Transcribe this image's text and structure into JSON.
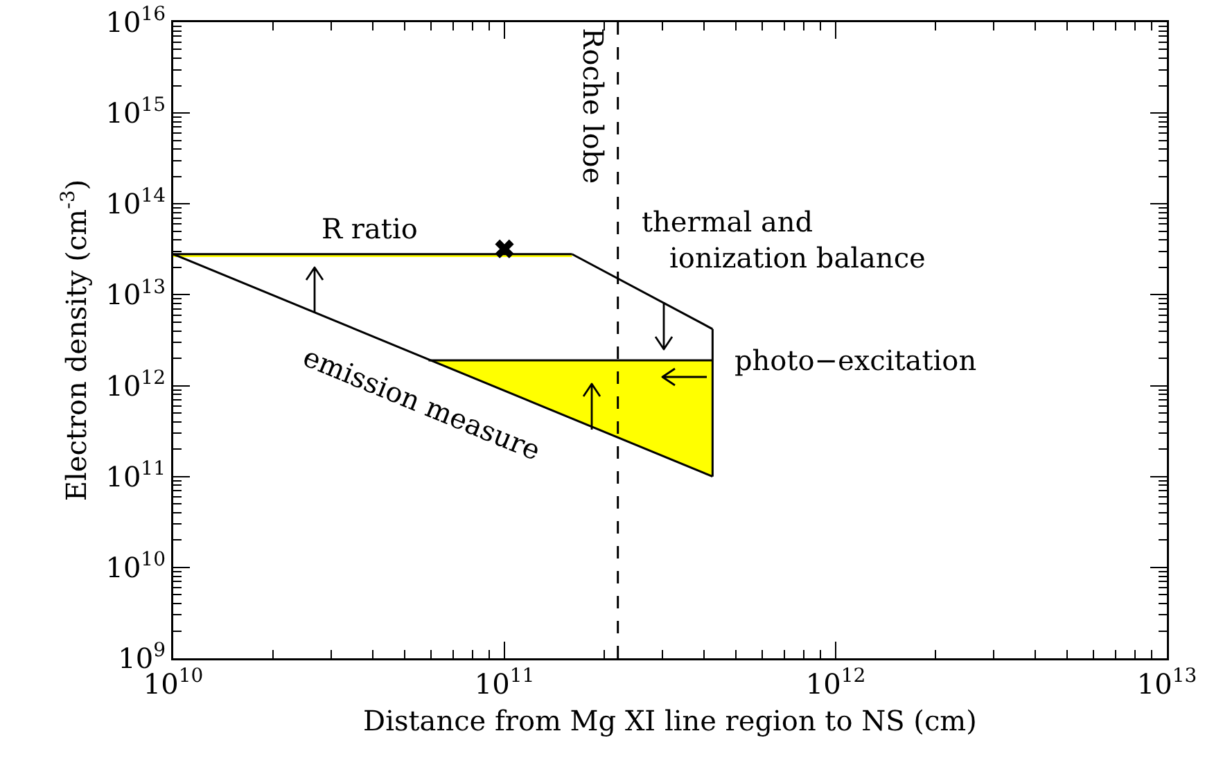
{
  "chart_data": {
    "type": "line",
    "xlabel": "Distance from Mg XI line region to NS (cm)",
    "ylabel": "Electron density (cm$^{-3}$)",
    "log": "xy",
    "xlim": [
      10000000000.0,
      10000000000000.0
    ],
    "ylim": [
      1000000000.0,
      1e+16
    ],
    "xticks": [
      {
        "value": 10000000000.0,
        "label": "10$^{10}$"
      },
      {
        "value": 100000000000.0,
        "label": "10$^{11}$"
      },
      {
        "value": 1000000000000.0,
        "label": "10$^{12}$"
      },
      {
        "value": 10000000000000.0,
        "label": "10$^{13}$"
      }
    ],
    "yticks": [
      {
        "value": 1000000000.0,
        "label": "10$^{9}$"
      },
      {
        "value": 10000000000.0,
        "label": "10$^{10}$"
      },
      {
        "value": 100000000000.0,
        "label": "10$^{11}$"
      },
      {
        "value": 1000000000000.0,
        "label": "10$^{12}$"
      },
      {
        "value": 10000000000000.0,
        "label": "10$^{13}$"
      },
      {
        "value": 100000000000000.0,
        "label": "10$^{14}$"
      },
      {
        "value": 1000000000000000.0,
        "label": "10$^{15}$"
      },
      {
        "value": 1e+16,
        "label": "10$^{16}$"
      }
    ],
    "grid": false,
    "series": [
      {
        "name": "R ratio",
        "color": "#000000",
        "x": [
          10000000000.0,
          160000000000.0
        ],
        "values": [
          28000000000000.0,
          28000000000000.0
        ],
        "lower": [
          26000000000000.0,
          26000000000000.0
        ],
        "upper": [
          28000000000000.0,
          28000000000000.0
        ]
      },
      {
        "name": "emission measure",
        "color": "#000000",
        "x": [
          10000000000.0,
          425000000000.0
        ],
        "values": [
          28000000000000.0,
          100000000000.0
        ]
      },
      {
        "name": "thermal and ionization balance",
        "color": "#000000",
        "x": [
          160000000000.0,
          425000000000.0
        ],
        "values": [
          28000000000000.0,
          4200000000000.0
        ]
      },
      {
        "name": "photo−excitation",
        "color": "#000000",
        "x": [
          59000000000.0,
          425000000000.0
        ],
        "values": [
          1900000000000.0,
          1900000000000.0
        ],
        "lower": [
          1900000000000.0,
          100000000000.0
        ],
        "upper": [
          1900000000000.0,
          1900000000000.0
        ]
      },
      {
        "color": "#000000",
        "x": [
          425000000000.0,
          425000000000.0
        ],
        "values": [
          100000000000.0,
          4200000000000.0
        ]
      },
      {
        "type": "scatter",
        "marker": "cross",
        "color": "#000000",
        "x": [
          100000000000.0
        ],
        "values": [
          32000000000000.0
        ]
      }
    ],
    "ref_lines": [
      {
        "axis": "x",
        "value": 220000000000.0,
        "label": "Roche lobe",
        "line_style": "dashed",
        "color": "#000000"
      }
    ]
  }
}
